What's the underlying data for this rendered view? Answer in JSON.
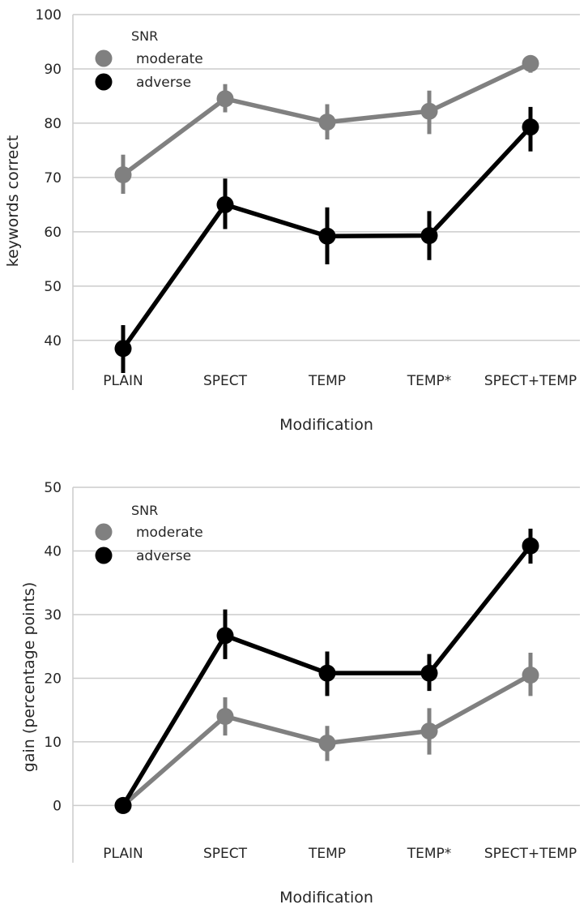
{
  "chart_data": [
    {
      "type": "line",
      "categories": [
        "PLAIN",
        "SPECT",
        "TEMP",
        "TEMP*",
        "SPECT+TEMP"
      ],
      "xlabel": "Modification",
      "ylabel": "keywords correct",
      "ylim": [
        30,
        100
      ],
      "yticks": [
        40,
        50,
        60,
        70,
        80,
        90,
        100
      ],
      "grid": "horizontal",
      "legend": {
        "title": "SNR",
        "position": "top-left",
        "entries": [
          "moderate",
          "adverse"
        ]
      },
      "series": [
        {
          "name": "moderate",
          "color": "#808080",
          "values": [
            70.5,
            84.5,
            80.2,
            82.2,
            91.0
          ],
          "err_low": [
            67.0,
            82.0,
            77.0,
            78.0,
            89.3
          ],
          "err_high": [
            74.2,
            87.2,
            83.5,
            86.0,
            92.5
          ]
        },
        {
          "name": "adverse",
          "color": "#000000",
          "values": [
            38.5,
            65.0,
            59.2,
            59.3,
            79.3
          ],
          "err_low": [
            34.0,
            60.5,
            54.0,
            54.8,
            74.8
          ],
          "err_high": [
            42.8,
            69.8,
            64.5,
            63.8,
            83.0
          ]
        }
      ]
    },
    {
      "type": "line",
      "categories": [
        "PLAIN",
        "SPECT",
        "TEMP",
        "TEMP*",
        "SPECT+TEMP"
      ],
      "xlabel": "Modification",
      "ylabel": "gain (percentage points)",
      "ylim": [
        -9,
        50
      ],
      "yticks": [
        0,
        10,
        20,
        30,
        40,
        50
      ],
      "grid": "horizontal",
      "legend": {
        "title": "SNR",
        "position": "top-left",
        "entries": [
          "moderate",
          "adverse"
        ]
      },
      "series": [
        {
          "name": "moderate",
          "color": "#808080",
          "values": [
            0,
            14.0,
            9.8,
            11.7,
            20.5
          ],
          "err_low": [
            0,
            11.0,
            7.0,
            8.0,
            17.2
          ],
          "err_high": [
            0,
            17.0,
            12.5,
            15.3,
            24.0
          ]
        },
        {
          "name": "adverse",
          "color": "#000000",
          "values": [
            0,
            26.7,
            20.8,
            20.8,
            40.8
          ],
          "err_low": [
            0,
            23.0,
            17.2,
            18.0,
            38.0
          ],
          "err_high": [
            0,
            30.8,
            24.2,
            23.8,
            43.5
          ]
        }
      ]
    }
  ]
}
